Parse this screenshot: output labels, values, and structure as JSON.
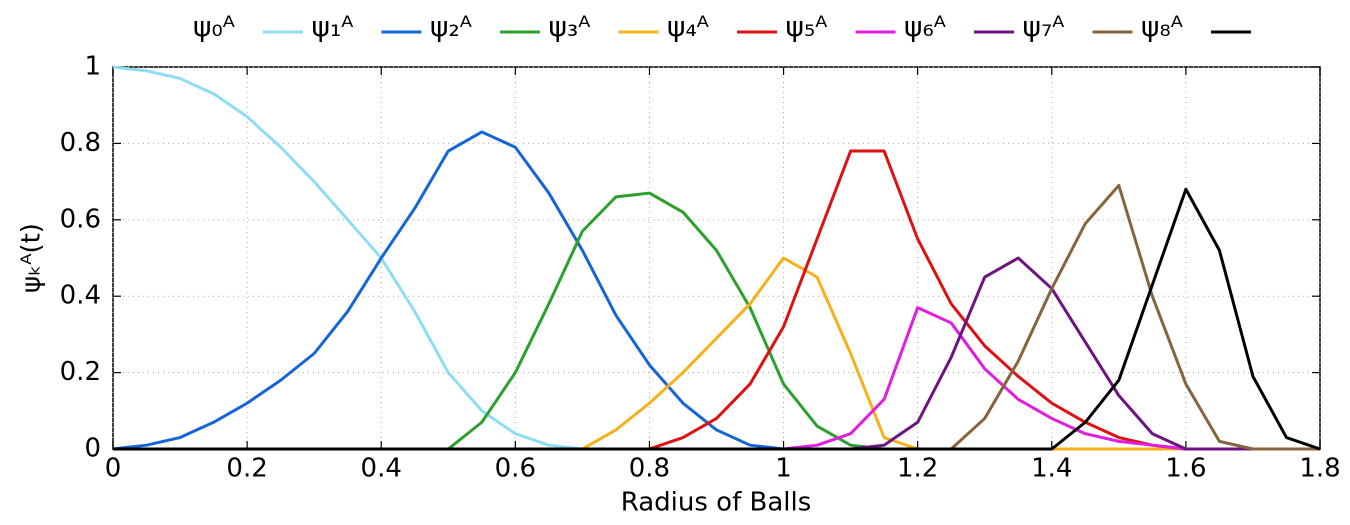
{
  "chart_data": {
    "type": "line",
    "xlabel": "Radius of Balls",
    "ylabel": "ψₖᴬ(t)",
    "x": [
      0,
      0.05,
      0.1,
      0.15,
      0.2,
      0.25,
      0.3,
      0.35,
      0.4,
      0.45,
      0.5,
      0.55,
      0.6,
      0.65,
      0.7,
      0.75,
      0.8,
      0.85,
      0.9,
      0.95,
      1,
      1.05,
      1.1,
      1.15,
      1.2,
      1.25,
      1.3,
      1.35,
      1.4,
      1.45,
      1.5,
      1.55,
      1.6,
      1.65,
      1.7,
      1.75,
      1.8
    ],
    "xlim": [
      0,
      1.8
    ],
    "xticks": [
      0,
      0.2,
      0.4,
      0.6,
      0.8,
      1,
      1.2,
      1.4,
      1.6,
      1.8
    ],
    "ylim": [
      0,
      1
    ],
    "yticks": [
      0,
      0.2,
      0.4,
      0.6,
      0.8,
      1
    ],
    "grid": true,
    "legend": "top",
    "series": [
      {
        "name": "ψ₀ᴬ",
        "color": "#8fdcf5",
        "values": [
          1,
          0.99,
          0.97,
          0.93,
          0.87,
          0.79,
          0.7,
          0.6,
          0.5,
          0.36,
          0.2,
          0.1,
          0.04,
          0.01,
          0,
          0,
          0,
          0,
          0,
          0,
          0,
          0,
          0,
          0,
          0,
          0,
          0,
          0,
          0,
          0,
          0,
          0,
          0,
          0,
          0,
          0,
          0
        ]
      },
      {
        "name": "ψ₁ᴬ",
        "color": "#1565d8",
        "values": [
          0,
          0.01,
          0.03,
          0.07,
          0.12,
          0.18,
          0.25,
          0.36,
          0.5,
          0.63,
          0.78,
          0.83,
          0.79,
          0.67,
          0.52,
          0.35,
          0.22,
          0.12,
          0.05,
          0.01,
          0,
          0,
          0,
          0,
          0,
          0,
          0,
          0,
          0,
          0,
          0,
          0,
          0,
          0,
          0,
          0,
          0
        ]
      },
      {
        "name": "ψ₂ᴬ",
        "color": "#2ca02c",
        "values": [
          0,
          0,
          0,
          0,
          0,
          0,
          0,
          0,
          0,
          0,
          0,
          0.07,
          0.2,
          0.38,
          0.57,
          0.66,
          0.67,
          0.62,
          0.52,
          0.37,
          0.17,
          0.06,
          0.01,
          0,
          0,
          0,
          0,
          0,
          0,
          0,
          0,
          0,
          0,
          0,
          0,
          0,
          0
        ]
      },
      {
        "name": "ψ₃ᴬ",
        "color": "#f5b01a",
        "values": [
          0,
          0,
          0,
          0,
          0,
          0,
          0,
          0,
          0,
          0,
          0,
          0,
          0,
          0,
          0,
          0.05,
          0.12,
          0.2,
          0.29,
          0.38,
          0.5,
          0.45,
          0.25,
          0.03,
          0,
          0,
          0,
          0,
          0,
          0,
          0,
          0,
          0,
          0,
          0,
          0,
          0
        ]
      },
      {
        "name": "ψ₄ᴬ",
        "color": "#dd1111",
        "values": [
          0,
          0,
          0,
          0,
          0,
          0,
          0,
          0,
          0,
          0,
          0,
          0,
          0,
          0,
          0,
          0,
          0,
          0.03,
          0.08,
          0.17,
          0.32,
          0.55,
          0.78,
          0.78,
          0.55,
          0.38,
          0.27,
          0.19,
          0.12,
          0.07,
          0.03,
          0.01,
          0,
          0,
          0,
          0,
          0
        ]
      },
      {
        "name": "ψ₅ᴬ",
        "color": "#e01ee0",
        "values": [
          0,
          0,
          0,
          0,
          0,
          0,
          0,
          0,
          0,
          0,
          0,
          0,
          0,
          0,
          0,
          0,
          0,
          0,
          0,
          0,
          0,
          0.01,
          0.04,
          0.13,
          0.37,
          0.33,
          0.21,
          0.13,
          0.08,
          0.04,
          0.02,
          0.01,
          0,
          0,
          0,
          0,
          0
        ]
      },
      {
        "name": "ψ₆ᴬ",
        "color": "#6e1480",
        "values": [
          0,
          0,
          0,
          0,
          0,
          0,
          0,
          0,
          0,
          0,
          0,
          0,
          0,
          0,
          0,
          0,
          0,
          0,
          0,
          0,
          0,
          0,
          0,
          0.01,
          0.07,
          0.24,
          0.45,
          0.5,
          0.42,
          0.28,
          0.14,
          0.04,
          0,
          0,
          0,
          0,
          0
        ]
      },
      {
        "name": "ψ₇ᴬ",
        "color": "#86643e",
        "values": [
          0,
          0,
          0,
          0,
          0,
          0,
          0,
          0,
          0,
          0,
          0,
          0,
          0,
          0,
          0,
          0,
          0,
          0,
          0,
          0,
          0,
          0,
          0,
          0,
          0,
          0,
          0.08,
          0.23,
          0.42,
          0.59,
          0.69,
          0.4,
          0.17,
          0.02,
          0,
          0,
          0
        ]
      },
      {
        "name": "ψ₈ᴬ",
        "color": "#000000",
        "values": [
          0,
          0,
          0,
          0,
          0,
          0,
          0,
          0,
          0,
          0,
          0,
          0,
          0,
          0,
          0,
          0,
          0,
          0,
          0,
          0,
          0,
          0,
          0,
          0,
          0,
          0,
          0,
          0,
          0,
          0.07,
          0.18,
          0.43,
          0.68,
          0.52,
          0.19,
          0.03,
          0
        ]
      }
    ]
  }
}
